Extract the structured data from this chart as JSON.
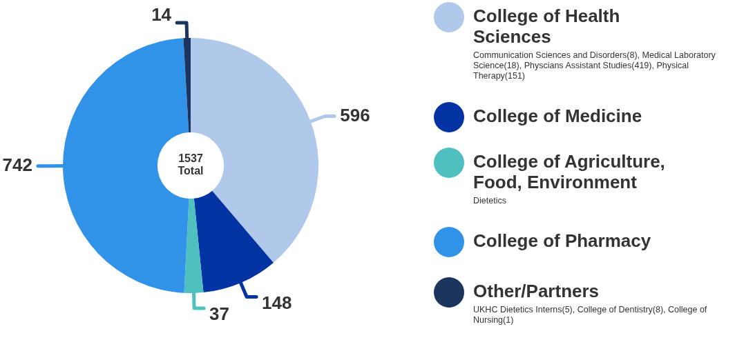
{
  "chart_data": {
    "type": "donut",
    "categories": [
      "College of Health Sciences",
      "College of Medicine",
      "College of Agriculture, Food, Environment",
      "College of Pharmacy",
      "Other/Partners"
    ],
    "values": [
      596,
      148,
      37,
      742,
      14
    ],
    "colors": [
      "#b0c8ea",
      "#0433a4",
      "#4fbfbf",
      "#3193e8",
      "#1c355e"
    ],
    "data_labels": true,
    "legend": "right",
    "annotations": [
      "1537 Total",
      {
        "text": "Communication Sciences and Disorders(8), Medical Laboratory Science(18), Physcians Assistant Studies(419), Physical Therapy(151)",
        "x": "College of Health Sciences"
      },
      {
        "text": "Dietetics",
        "x": "College of Agriculture, Food, Environment"
      },
      {
        "text": "UKHC Dietetics Interns(5), College of Dentistry(8), College of Nursing(1)",
        "x": "Other/Partners"
      }
    ]
  }
}
